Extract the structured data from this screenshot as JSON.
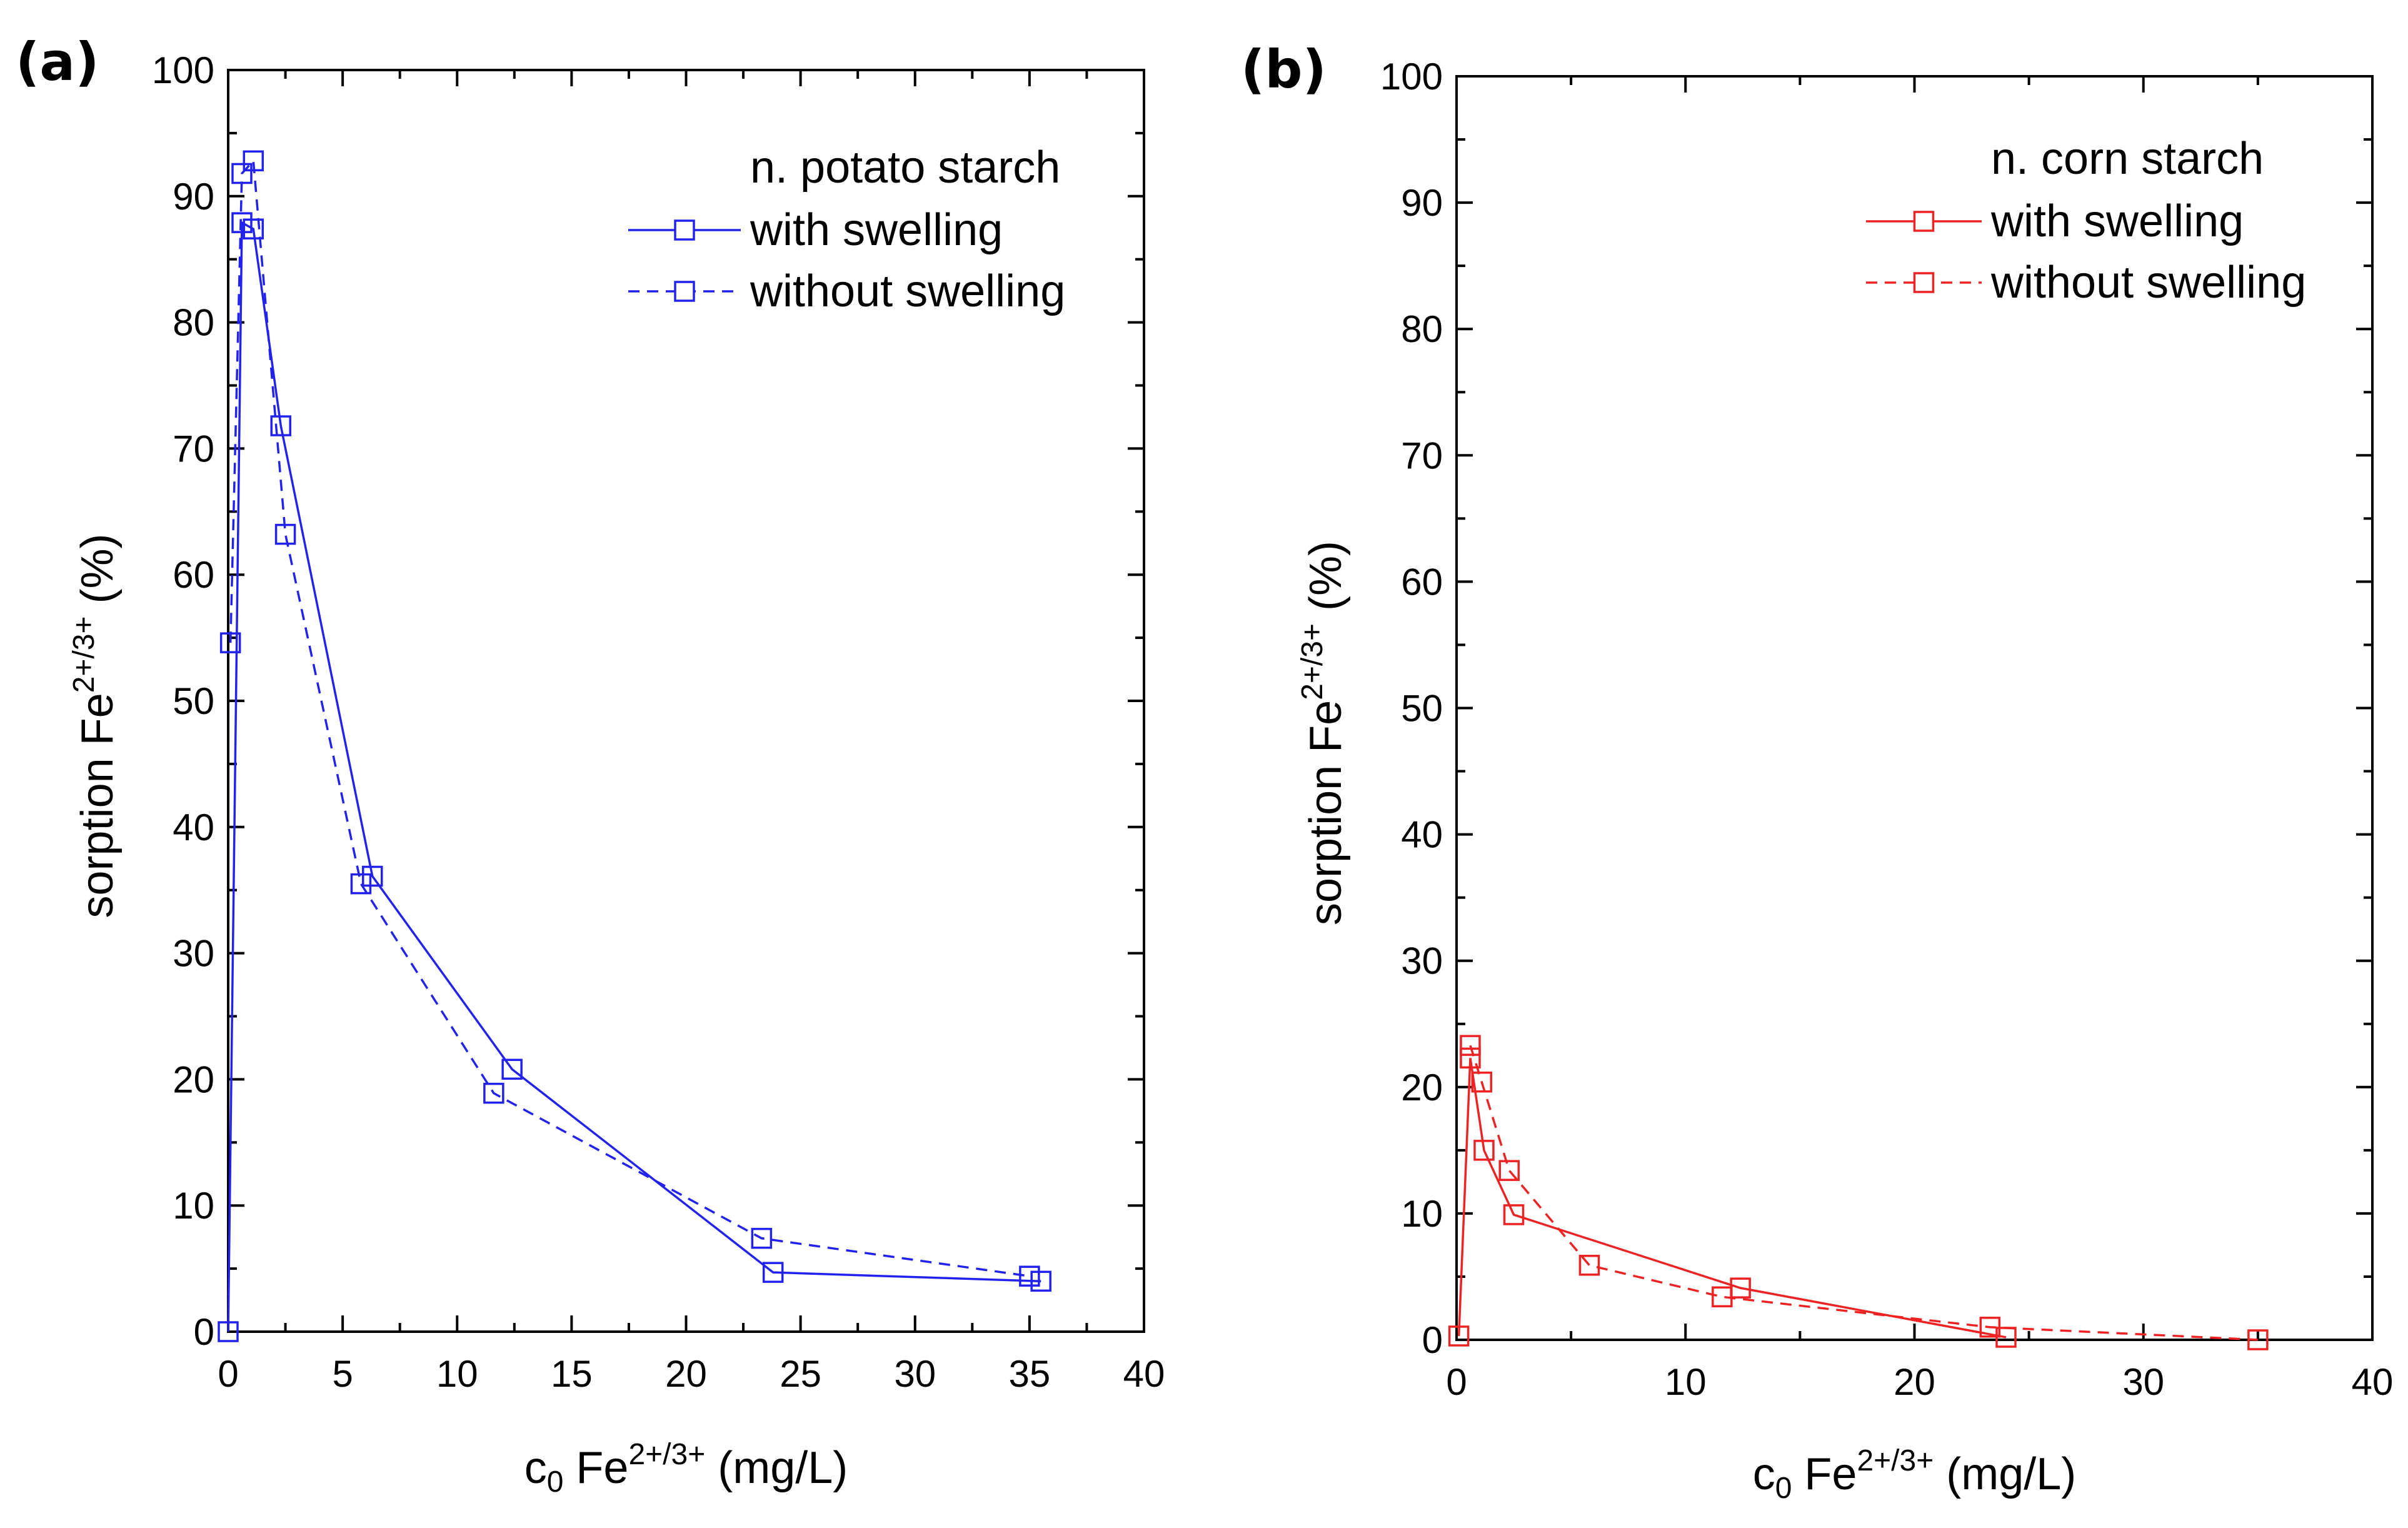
{
  "colors": {
    "panel_a": "#2222ee",
    "panel_b": "#ee2222",
    "axis": "#000000"
  },
  "chart_data": [
    {
      "type": "line",
      "panel_label": "(a)",
      "title": "",
      "xlabel": {
        "main": "c",
        "sub": "0",
        "species": " Fe",
        "sup": "2+/3+",
        "unit": " (mg/L)"
      },
      "ylabel": {
        "main": "sorption Fe",
        "sup": "2+/3+",
        "unit": " (%)"
      },
      "xlim": [
        0,
        40
      ],
      "ylim": [
        0,
        100
      ],
      "xticks": [
        0,
        5,
        10,
        15,
        20,
        25,
        30,
        35,
        40
      ],
      "yticks": [
        0,
        10,
        20,
        30,
        40,
        50,
        60,
        70,
        80,
        90,
        100
      ],
      "legend_title": "n. potato starch",
      "legend_position": "top-right",
      "series": [
        {
          "name": "with swelling",
          "style": "solid",
          "marker": "open-square",
          "x": [
            0,
            0.6,
            1.1,
            2.3,
            6.3,
            12.4,
            23.8,
            35.5
          ],
          "y": [
            0,
            87.9,
            87.4,
            71.8,
            36.1,
            20.8,
            4.7,
            4.0
          ]
        },
        {
          "name": "without swelling",
          "style": "dashed",
          "marker": "open-square",
          "x": [
            0.1,
            0.6,
            1.1,
            2.5,
            5.8,
            11.6,
            23.3,
            35.0
          ],
          "y": [
            54.6,
            91.8,
            92.8,
            63.2,
            35.5,
            18.9,
            7.4,
            4.4
          ]
        }
      ]
    },
    {
      "type": "line",
      "panel_label": "(b)",
      "title": "",
      "xlabel": {
        "main": "c",
        "sub": "0",
        "species": " Fe",
        "sup": "2+/3+",
        "unit": " (mg/L)"
      },
      "ylabel": {
        "main": "sorption Fe",
        "sup": "2+/3+",
        "unit": " (%)"
      },
      "xlim": [
        0,
        40
      ],
      "ylim": [
        0,
        100
      ],
      "xticks": [
        0,
        10,
        20,
        30,
        40
      ],
      "yticks": [
        0,
        10,
        20,
        30,
        40,
        50,
        60,
        70,
        80,
        90,
        100
      ],
      "legend_title": "n. corn starch",
      "legend_position": "top-right",
      "series": [
        {
          "name": "with swelling",
          "style": "solid",
          "marker": "open-square",
          "x": [
            0.1,
            0.6,
            1.2,
            2.5,
            12.4,
            24.0
          ],
          "y": [
            0.3,
            22.3,
            15.0,
            9.9,
            4.1,
            0.2
          ]
        },
        {
          "name": "without swelling",
          "style": "dashed",
          "marker": "open-square",
          "x": [
            0.6,
            1.1,
            2.3,
            5.8,
            11.6,
            23.3,
            35.0
          ],
          "y": [
            23.3,
            20.4,
            13.4,
            5.9,
            3.4,
            1.0,
            0
          ]
        }
      ]
    }
  ]
}
